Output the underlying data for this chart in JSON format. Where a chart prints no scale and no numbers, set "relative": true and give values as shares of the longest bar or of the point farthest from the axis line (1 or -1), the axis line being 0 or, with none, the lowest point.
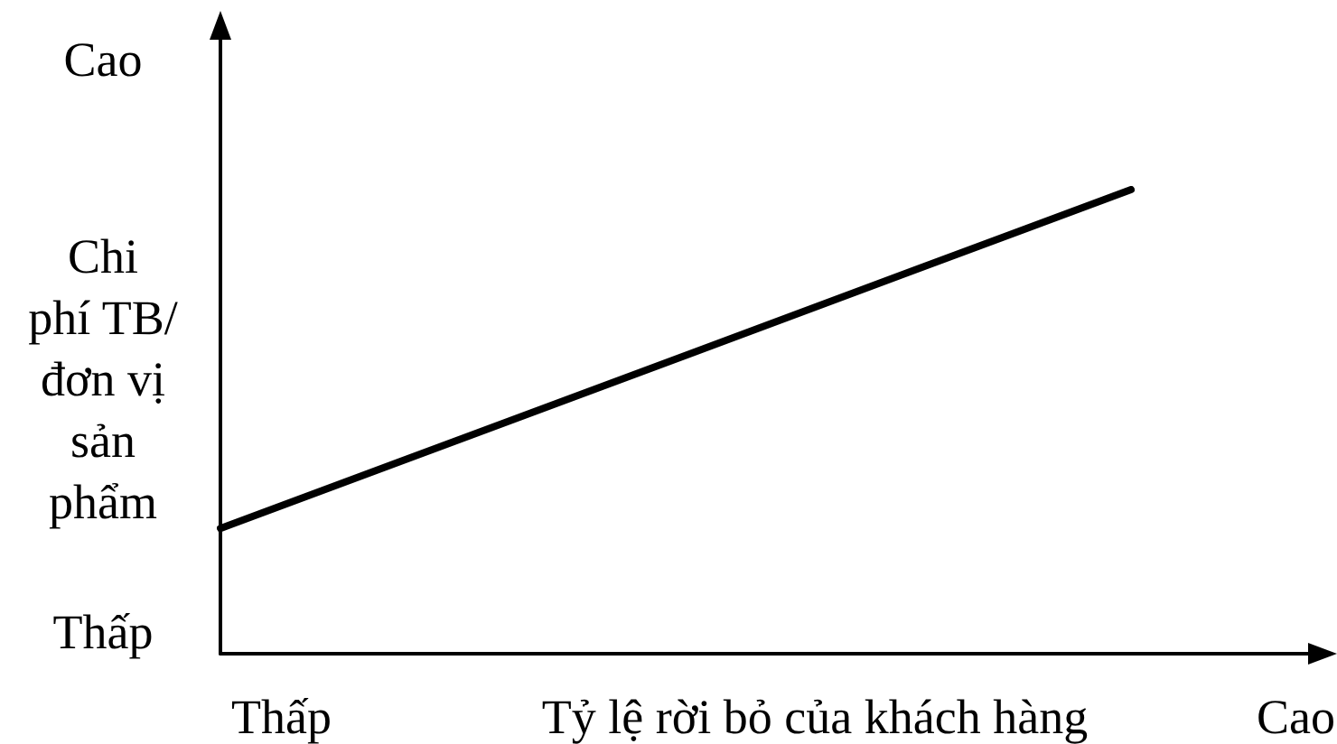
{
  "chart_data": {
    "type": "line",
    "relative": true,
    "categories": [
      null,
      null
    ],
    "series": [
      {
        "color": "#000000",
        "values": [
          0.27,
          1
        ]
      }
    ],
    "xlabel": "Tỷ lệ rời bỏ của khách hàng",
    "ylabel": "Chi\nphí TB/\nđơn vị\nsản\nphẩm",
    "annotations": [
      "Cao",
      "Thấp",
      "Thấp",
      "Cao"
    ],
    "marker": "none",
    "line_style": "solid"
  }
}
